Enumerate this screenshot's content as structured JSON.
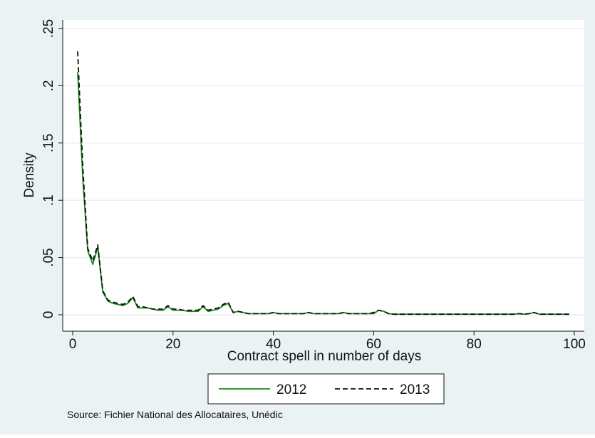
{
  "chart_data": {
    "type": "line",
    "title": "",
    "xlabel": "Contract spell in number of days",
    "ylabel": "Density",
    "xlim": [
      0,
      100
    ],
    "ylim": [
      0,
      0.25
    ],
    "xticks": [
      0,
      20,
      40,
      60,
      80,
      100
    ],
    "xtick_labels": [
      "0",
      "20",
      "40",
      "60",
      "80",
      "100"
    ],
    "yticks": [
      0,
      0.05,
      0.1,
      0.15,
      0.2,
      0.25
    ],
    "ytick_labels": [
      "0",
      ".05",
      ".1",
      ".15",
      ".2",
      ".25"
    ],
    "grid": true,
    "legend_position": "bottom",
    "x": [
      1,
      2,
      3,
      4,
      5,
      6,
      7,
      8,
      9,
      10,
      11,
      12,
      13,
      14,
      15,
      16,
      17,
      18,
      19,
      20,
      21,
      22,
      23,
      24,
      25,
      26,
      27,
      28,
      29,
      30,
      31,
      32,
      33,
      34,
      35,
      36,
      37,
      38,
      39,
      40,
      41,
      42,
      43,
      44,
      45,
      46,
      47,
      48,
      49,
      50,
      51,
      52,
      53,
      54,
      55,
      56,
      57,
      58,
      59,
      60,
      61,
      62,
      63,
      64,
      65,
      66,
      67,
      68,
      69,
      70,
      71,
      72,
      73,
      74,
      75,
      76,
      77,
      78,
      79,
      80,
      81,
      82,
      83,
      84,
      85,
      86,
      87,
      88,
      89,
      90,
      91,
      92,
      93,
      94,
      95,
      96,
      97,
      98,
      99
    ],
    "series": [
      {
        "name": "2012",
        "color": "#1a8a1a",
        "style": "solid",
        "values": [
          0.212,
          0.12,
          0.056,
          0.044,
          0.059,
          0.02,
          0.012,
          0.01,
          0.009,
          0.008,
          0.01,
          0.015,
          0.006,
          0.006,
          0.006,
          0.005,
          0.004,
          0.004,
          0.007,
          0.004,
          0.004,
          0.004,
          0.003,
          0.003,
          0.003,
          0.007,
          0.003,
          0.004,
          0.005,
          0.008,
          0.01,
          0.002,
          0.003,
          0.002,
          0.001,
          0.001,
          0.001,
          0.001,
          0.001,
          0.002,
          0.001,
          0.001,
          0.001,
          0.001,
          0.001,
          0.001,
          0.002,
          0.001,
          0.001,
          0.001,
          0.001,
          0.001,
          0.001,
          0.002,
          0.001,
          0.001,
          0.001,
          0.001,
          0.001,
          0.001,
          0.004,
          0.003,
          0.001,
          0.0005,
          0.0005,
          0.0005,
          0.0005,
          0.0005,
          0.0005,
          0.0005,
          0.0005,
          0.0005,
          0.0005,
          0.0005,
          0.0005,
          0.0005,
          0.0005,
          0.0005,
          0.0005,
          0.0005,
          0.0005,
          0.0005,
          0.0005,
          0.0005,
          0.0005,
          0.0005,
          0.0005,
          0.0005,
          0.001,
          0.0005,
          0.001,
          0.002,
          0.0005,
          0.0005,
          0.0005,
          0.0005,
          0.0005,
          0.0005,
          0.0005
        ]
      },
      {
        "name": "2013",
        "color": "#111111",
        "style": "dashed",
        "values": [
          0.23,
          0.13,
          0.058,
          0.047,
          0.061,
          0.021,
          0.013,
          0.011,
          0.01,
          0.009,
          0.011,
          0.016,
          0.007,
          0.007,
          0.006,
          0.005,
          0.005,
          0.005,
          0.008,
          0.005,
          0.005,
          0.004,
          0.004,
          0.004,
          0.004,
          0.008,
          0.004,
          0.005,
          0.006,
          0.009,
          0.011,
          0.002,
          0.003,
          0.002,
          0.001,
          0.001,
          0.001,
          0.001,
          0.001,
          0.002,
          0.001,
          0.001,
          0.001,
          0.001,
          0.001,
          0.001,
          0.002,
          0.001,
          0.001,
          0.001,
          0.001,
          0.001,
          0.001,
          0.002,
          0.001,
          0.001,
          0.001,
          0.001,
          0.001,
          0.002,
          0.004,
          0.003,
          0.001,
          0.0005,
          0.0005,
          0.0005,
          0.0005,
          0.0005,
          0.0005,
          0.0005,
          0.0005,
          0.0005,
          0.0005,
          0.0005,
          0.0005,
          0.0005,
          0.0005,
          0.0005,
          0.0005,
          0.0005,
          0.0005,
          0.0005,
          0.0005,
          0.0005,
          0.0005,
          0.0005,
          0.0005,
          0.0005,
          0.001,
          0.0005,
          0.001,
          0.002,
          0.0005,
          0.0005,
          0.0005,
          0.0005,
          0.0005,
          0.0005,
          0.0005
        ]
      }
    ],
    "note": "Source: Fichier National des Allocataires, Unédic"
  }
}
